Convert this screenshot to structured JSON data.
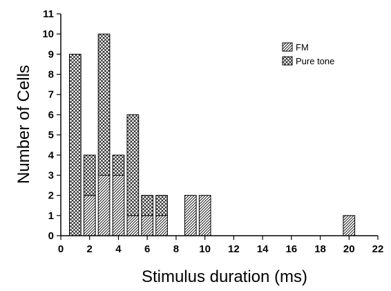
{
  "chart_data": {
    "type": "bar",
    "stacked": true,
    "title": "",
    "xlabel": "Stimulus duration (ms)",
    "ylabel": "Number of Cells",
    "xlim": [
      0,
      22
    ],
    "ylim": [
      0,
      11
    ],
    "x_ticks": [
      0,
      2,
      4,
      6,
      8,
      10,
      12,
      14,
      16,
      18,
      20,
      22
    ],
    "y_ticks": [
      0,
      1,
      2,
      3,
      4,
      5,
      6,
      7,
      8,
      9,
      10,
      11
    ],
    "grid": false,
    "legend_position": "top-right",
    "x": [
      1,
      2,
      3,
      4,
      5,
      6,
      7,
      9,
      10,
      20
    ],
    "series": [
      {
        "name": "FM",
        "pattern": "diagonal-hatch",
        "values": [
          0,
          2,
          3,
          3,
          1,
          1,
          1,
          2,
          2,
          1
        ]
      },
      {
        "name": "Pure tone",
        "pattern": "crosshatch",
        "values": [
          9,
          2,
          7,
          1,
          5,
          1,
          1,
          0,
          0,
          0
        ]
      }
    ]
  }
}
